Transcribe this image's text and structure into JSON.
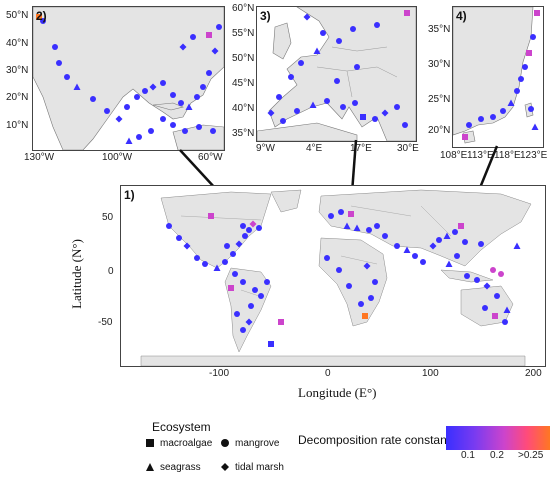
{
  "panels": {
    "p1": {
      "label": "1)",
      "x_ticks": [
        "-100",
        "0",
        "100",
        "200"
      ],
      "y_ticks": [
        "50",
        "0",
        "-50"
      ],
      "x_title": "Longitude (E°)",
      "y_title": "Latitude (N°)"
    },
    "p2": {
      "label": "2)",
      "x_ticks": [
        "130°W",
        "100°W",
        "60°W"
      ],
      "y_ticks": [
        "50°N",
        "40°N",
        "30°N",
        "20°N",
        "10°N"
      ]
    },
    "p3": {
      "label": "3)",
      "x_ticks": [
        "9°W",
        "4°E",
        "17°E",
        "30°E"
      ],
      "y_ticks": [
        "60°N",
        "55°N",
        "50°N",
        "45°N",
        "40°N",
        "35°N"
      ]
    },
    "p4": {
      "label": "4)",
      "x_ticks": [
        "108°E",
        "113°E",
        "118°E",
        "123°E"
      ],
      "y_ticks": [
        "35°N",
        "30°N",
        "25°N",
        "20°N"
      ]
    }
  },
  "legend": {
    "ecosystem_title": "Ecosystem",
    "items": [
      {
        "shape": "square",
        "label": "macroalgae"
      },
      {
        "shape": "circle",
        "label": "mangrove"
      },
      {
        "shape": "triangle",
        "label": "seagrass"
      },
      {
        "shape": "diamond",
        "label": "tidal marsh"
      }
    ],
    "rate_title": "Decomposition rate constant",
    "rate_ticks": [
      "0.1",
      "0.2",
      ">0.25"
    ],
    "colors": {
      "low": "#3a2fff",
      "mid": "#cc44cc",
      "high": "#ff7722"
    }
  }
}
